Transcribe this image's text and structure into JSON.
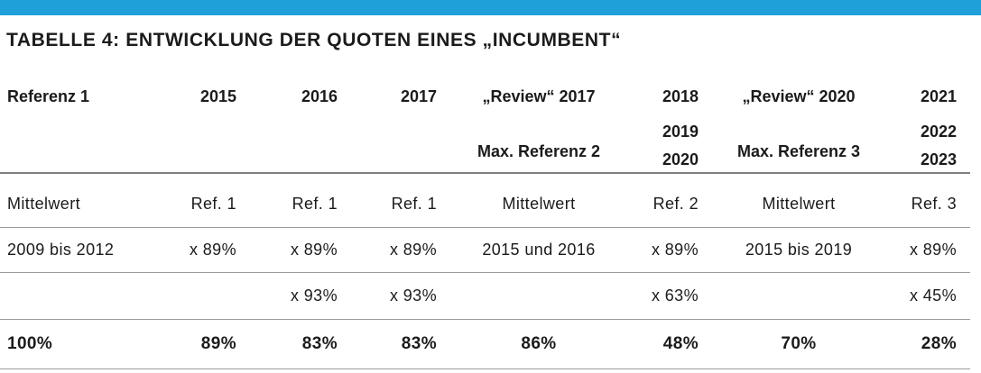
{
  "colors": {
    "top_bar": "#1fa0d8",
    "text": "#1b1b1b",
    "rule": "#9a9a9a"
  },
  "title": "TABELLE 4: ENTWICKLUNG DER QUOTEN EINES „INCUMBENT“",
  "table": {
    "columns": [
      {
        "lines": [
          "Referenz 1"
        ]
      },
      {
        "lines": [
          "2015"
        ]
      },
      {
        "lines": [
          "2016"
        ]
      },
      {
        "lines": [
          "2017"
        ]
      },
      {
        "lines": [
          "„Review“ 2017",
          "Max. Referenz 2"
        ]
      },
      {
        "lines": [
          "2018",
          "2019",
          "2020"
        ]
      },
      {
        "lines": [
          "„Review“ 2020",
          "Max. Referenz 3"
        ]
      },
      {
        "lines": [
          "2021",
          "2022",
          "2023"
        ]
      }
    ],
    "rows": [
      [
        "Mittelwert",
        "Ref. 1",
        "Ref. 1",
        "Ref. 1",
        "Mittelwert",
        "Ref. 2",
        "Mittelwert",
        "Ref. 3"
      ],
      [
        "2009 bis 2012",
        "x 89%",
        "x 89%",
        "x 89%",
        "2015 und 2016",
        "x 89%",
        "2015 bis 2019",
        "x 89%"
      ],
      [
        "",
        "",
        "x 93%",
        "x 93%",
        "",
        "x 63%",
        "",
        "x 45%"
      ],
      [
        "100%",
        "89%",
        "83%",
        "83%",
        "86%",
        "48%",
        "70%",
        "28%"
      ]
    ]
  }
}
